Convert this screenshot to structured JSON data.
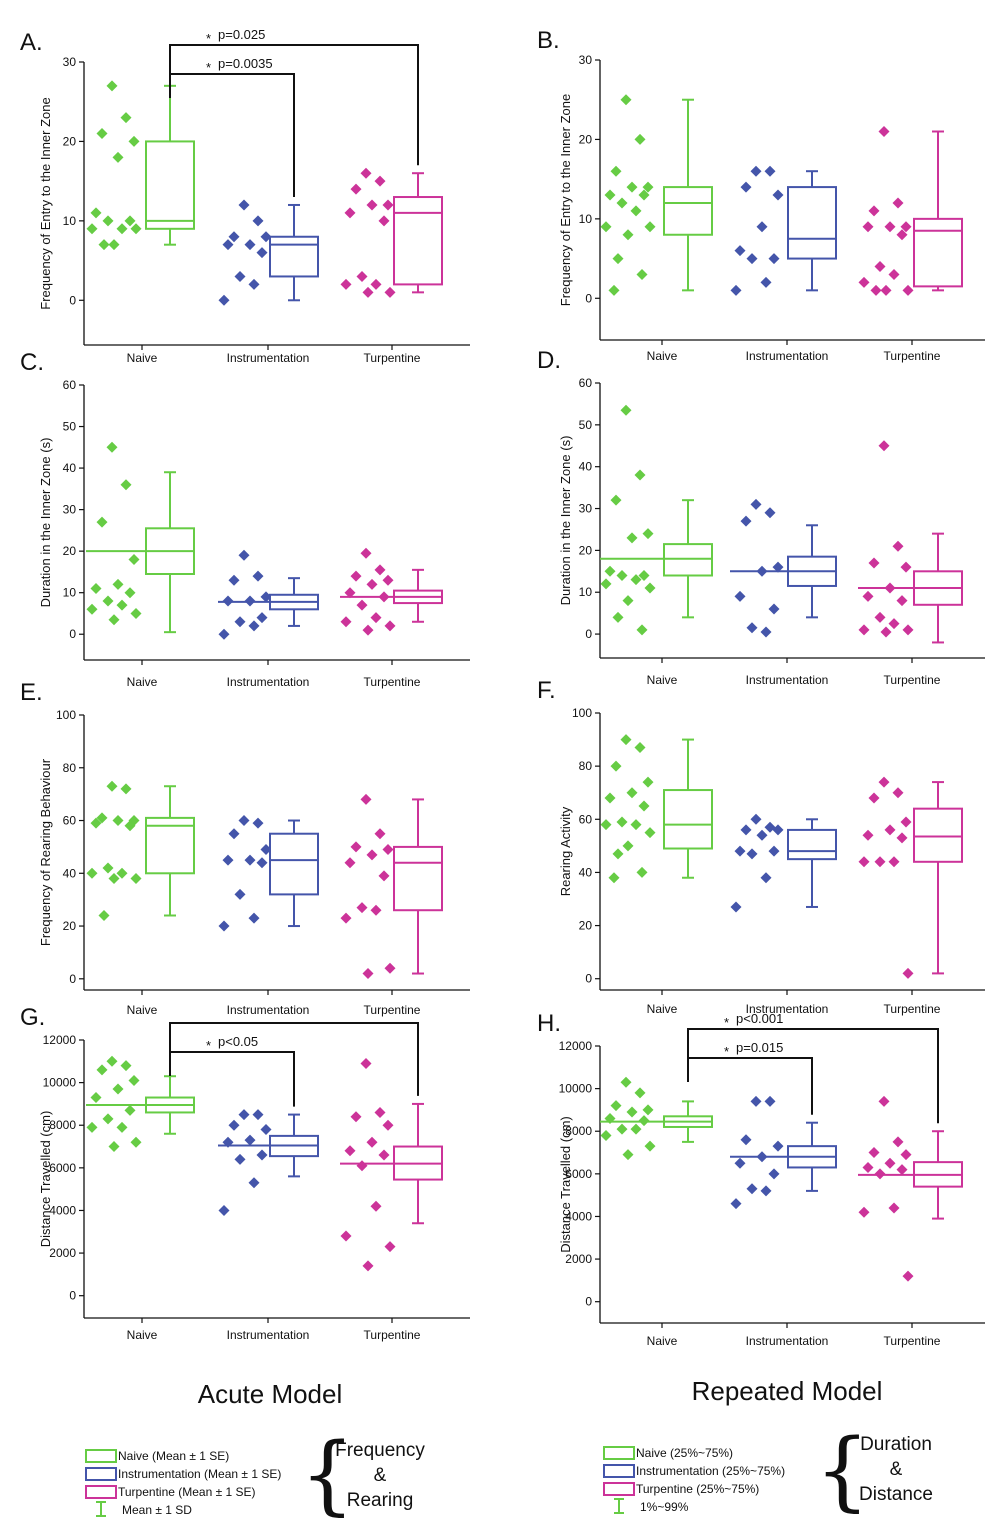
{
  "colors": {
    "naive": "#66cc44",
    "instrumentation": "#4455aa",
    "turpentine": "#cc3399",
    "axis": "#111111"
  },
  "model_titles": {
    "acute": "Acute Model",
    "repeated": "Repeated Model"
  },
  "legends": {
    "acute": {
      "items": [
        "Naive (Mean ± 1 SE)",
        "Instrumentation (Mean ± 1 SE)",
        "Turpentine (Mean ± 1 SE)",
        "Mean ± 1 SD"
      ],
      "brace_label": [
        "Frequency",
        "&",
        "Rearing"
      ]
    },
    "repeated": {
      "items": [
        "Naive (25%~75%)",
        "Instrumentation (25%~75%)",
        "Turpentine (25%~75%)",
        "1%~99%"
      ],
      "brace_label": [
        "Duration",
        "&",
        "Distance"
      ]
    }
  },
  "chart_data": [
    {
      "panel": "A.",
      "type": "box",
      "ylabel": "Frequency of Entry to the Inner Zone",
      "ylim": [
        -5,
        30
      ],
      "yticks": [
        0,
        10,
        20,
        30
      ],
      "categories": [
        "Naive",
        "Instrumentation",
        "Turpentine"
      ],
      "series": [
        {
          "group": "Naive",
          "points": [
            27,
            23,
            21,
            20,
            18,
            11,
            10,
            10,
            9,
            9,
            9,
            7,
            7
          ],
          "box": [
            9,
            10,
            20
          ],
          "whisker": [
            7,
            27
          ]
        },
        {
          "group": "Instrumentation",
          "points": [
            12,
            10,
            8,
            8,
            7,
            7,
            6,
            3,
            2,
            0
          ],
          "box": [
            3,
            7,
            8
          ],
          "whisker": [
            0,
            12
          ]
        },
        {
          "group": "Turpentine",
          "points": [
            16,
            15,
            14,
            12,
            12,
            11,
            10,
            3,
            2,
            2,
            1,
            1
          ],
          "box": [
            2,
            11,
            13
          ],
          "whisker": [
            1,
            16
          ]
        }
      ],
      "significance": [
        {
          "from": "Naive",
          "to": "Instrumentation",
          "label": "p=0.0035",
          "marker": "*"
        },
        {
          "from": "Naive",
          "to": "Turpentine",
          "label": "p=0.025",
          "marker": "*"
        }
      ]
    },
    {
      "panel": "B.",
      "type": "box",
      "ylabel": "Frequency of Entry to the Inner Zone",
      "ylim": [
        -5,
        30
      ],
      "yticks": [
        0,
        10,
        20,
        30
      ],
      "categories": [
        "Naive",
        "Instrumentation",
        "Turpentine"
      ],
      "series": [
        {
          "group": "Naive",
          "points": [
            25,
            20,
            16,
            14,
            14,
            13,
            13,
            12,
            11,
            9,
            9,
            8,
            5,
            3,
            1
          ],
          "box": [
            8,
            12,
            14
          ],
          "whisker": [
            1,
            25
          ]
        },
        {
          "group": "Instrumentation",
          "points": [
            16,
            16,
            14,
            13,
            9,
            6,
            5,
            5,
            2,
            1
          ],
          "box": [
            5,
            7.5,
            14
          ],
          "whisker": [
            1,
            16
          ]
        },
        {
          "group": "Turpentine",
          "points": [
            21,
            12,
            11,
            9,
            9,
            9,
            8,
            4,
            3,
            2,
            1,
            1,
            1
          ],
          "box": [
            1.5,
            8.5,
            10
          ],
          "whisker": [
            1,
            21
          ]
        }
      ],
      "significance": []
    },
    {
      "panel": "C.",
      "type": "box",
      "ylabel": "Duration in the Inner Zone (s)",
      "ylim": [
        -5,
        60
      ],
      "yticks": [
        0,
        10,
        20,
        30,
        40,
        50,
        60
      ],
      "categories": [
        "Naive",
        "Instrumentation",
        "Turpentine"
      ],
      "series": [
        {
          "group": "Naive",
          "points": [
            45,
            36,
            27,
            18,
            12,
            11,
            10,
            8,
            7,
            6,
            5,
            3.5
          ],
          "mean": 20,
          "box": [
            14.5,
            20,
            25.5
          ],
          "whisker": [
            0.5,
            39
          ]
        },
        {
          "group": "Instrumentation",
          "points": [
            19,
            14,
            13,
            9,
            8,
            8,
            4,
            3,
            2,
            0
          ],
          "mean": 7.8,
          "box": [
            6,
            7.8,
            9.5
          ],
          "whisker": [
            2,
            13.5
          ]
        },
        {
          "group": "Turpentine",
          "points": [
            19.5,
            15.5,
            14,
            13,
            12,
            10,
            9,
            7,
            4,
            3,
            2,
            1
          ],
          "mean": 9,
          "box": [
            7.5,
            9,
            10.5
          ],
          "whisker": [
            3,
            15.5
          ]
        }
      ],
      "significance": []
    },
    {
      "panel": "D.",
      "type": "box",
      "ylabel": "Duration in the Inner Zone (s)",
      "ylim": [
        -5,
        60
      ],
      "yticks": [
        0,
        10,
        20,
        30,
        40,
        50,
        60
      ],
      "categories": [
        "Naive",
        "Instrumentation",
        "Turpentine"
      ],
      "series": [
        {
          "group": "Naive",
          "points": [
            53.5,
            38,
            32,
            24,
            23,
            15,
            14,
            14,
            13,
            12,
            11,
            8,
            4,
            1
          ],
          "mean": 18,
          "box": [
            14,
            18,
            21.5
          ],
          "whisker": [
            4,
            32
          ]
        },
        {
          "group": "Instrumentation",
          "points": [
            31,
            29,
            27,
            16,
            15,
            9,
            6,
            1.5,
            0.5
          ],
          "mean": 15,
          "box": [
            11.5,
            15,
            18.5
          ],
          "whisker": [
            4,
            26
          ]
        },
        {
          "group": "Turpentine",
          "points": [
            45,
            21,
            17,
            16,
            11,
            9,
            8,
            4,
            2.5,
            1,
            1,
            0.5
          ],
          "mean": 11,
          "box": [
            7,
            11,
            15
          ],
          "whisker": [
            -2,
            24
          ]
        }
      ],
      "significance": []
    },
    {
      "panel": "E.",
      "type": "box",
      "ylabel": "Frequency of Rearing Behaviour",
      "ylim": [
        -5,
        100
      ],
      "yticks": [
        0,
        20,
        40,
        60,
        80,
        100
      ],
      "categories": [
        "Naive",
        "Instrumentation",
        "Turpentine"
      ],
      "series": [
        {
          "group": "Naive",
          "points": [
            73,
            72,
            61,
            60,
            60,
            59,
            58,
            42,
            40,
            40,
            38,
            38,
            24
          ],
          "box": [
            40,
            58,
            61
          ],
          "whisker": [
            24,
            73
          ]
        },
        {
          "group": "Instrumentation",
          "points": [
            60,
            59,
            55,
            49,
            45,
            45,
            44,
            32,
            23,
            20
          ],
          "box": [
            32,
            45,
            55
          ],
          "whisker": [
            20,
            60
          ]
        },
        {
          "group": "Turpentine",
          "points": [
            68,
            55,
            50,
            49,
            47,
            44,
            39,
            27,
            26,
            23,
            4,
            2
          ],
          "box": [
            26,
            44,
            50
          ],
          "whisker": [
            2,
            68
          ]
        }
      ],
      "significance": []
    },
    {
      "panel": "F.",
      "type": "box",
      "ylabel": "Rearing Activity",
      "ylim": [
        -5,
        100
      ],
      "yticks": [
        0,
        20,
        40,
        60,
        80,
        100
      ],
      "categories": [
        "Naive",
        "Instrumentation",
        "Turpentine"
      ],
      "series": [
        {
          "group": "Naive",
          "points": [
            90,
            87,
            80,
            74,
            70,
            68,
            65,
            59,
            58,
            58,
            55,
            50,
            47,
            40,
            38
          ],
          "box": [
            49,
            58,
            71
          ],
          "whisker": [
            38,
            90
          ]
        },
        {
          "group": "Instrumentation",
          "points": [
            60,
            57,
            56,
            56,
            54,
            48,
            48,
            47,
            38,
            27
          ],
          "box": [
            45,
            48,
            56
          ],
          "whisker": [
            27,
            60
          ]
        },
        {
          "group": "Turpentine",
          "points": [
            74,
            70,
            68,
            59,
            56,
            54,
            53,
            44,
            44,
            44,
            2
          ],
          "box": [
            44,
            53.5,
            64
          ],
          "whisker": [
            2,
            74
          ]
        }
      ],
      "significance": []
    },
    {
      "panel": "G.",
      "type": "box",
      "ylabel": "Distance Travelled (cm)",
      "ylim": [
        -1000,
        12000
      ],
      "yticks": [
        0,
        2000,
        4000,
        6000,
        8000,
        10000,
        12000
      ],
      "categories": [
        "Naive",
        "Instrumentation",
        "Turpentine"
      ],
      "series": [
        {
          "group": "Naive",
          "points": [
            11000,
            10800,
            10600,
            10100,
            9700,
            9300,
            8700,
            8300,
            7900,
            7900,
            7200,
            7000
          ],
          "mean": 8950,
          "box": [
            8600,
            8950,
            9300
          ],
          "whisker": [
            7600,
            10300
          ]
        },
        {
          "group": "Instrumentation",
          "points": [
            8500,
            8500,
            8000,
            7800,
            7300,
            7200,
            6600,
            6400,
            5300,
            4000
          ],
          "mean": 7050,
          "box": [
            6550,
            7050,
            7500
          ],
          "whisker": [
            5600,
            8500
          ]
        },
        {
          "group": "Turpentine",
          "points": [
            10900,
            8600,
            8400,
            8000,
            7200,
            6800,
            6600,
            6100,
            4200,
            2800,
            2300,
            1400
          ],
          "mean": 6200,
          "box": [
            5450,
            6200,
            7000
          ],
          "whisker": [
            3400,
            9000
          ]
        }
      ],
      "significance": [
        {
          "from": "Naive",
          "to": "Instrumentation",
          "label": "p<0.05",
          "marker": "*"
        },
        {
          "from": "Naive",
          "to": "Turpentine",
          "label": "",
          "marker": ""
        }
      ]
    },
    {
      "panel": "H.",
      "type": "box",
      "ylabel": "Distance Travelled (cm)",
      "ylim": [
        -1000,
        12000
      ],
      "yticks": [
        0,
        2000,
        4000,
        6000,
        8000,
        10000,
        12000
      ],
      "categories": [
        "Naive",
        "Instrumentation",
        "Turpentine"
      ],
      "series": [
        {
          "group": "Naive",
          "points": [
            10300,
            9800,
            9200,
            9000,
            8900,
            8600,
            8500,
            8100,
            8100,
            7800,
            7300,
            6900
          ],
          "mean": 8450,
          "box": [
            8200,
            8450,
            8700
          ],
          "whisker": [
            7500,
            9400
          ]
        },
        {
          "group": "Instrumentation",
          "points": [
            9400,
            9400,
            7600,
            7300,
            6800,
            6500,
            6000,
            5300,
            5200,
            4600
          ],
          "mean": 6800,
          "box": [
            6300,
            6800,
            7300
          ],
          "whisker": [
            5200,
            8400
          ]
        },
        {
          "group": "Turpentine",
          "points": [
            9400,
            7500,
            7000,
            6900,
            6500,
            6300,
            6200,
            6000,
            4400,
            4200,
            1200
          ],
          "mean": 5950,
          "box": [
            5400,
            5950,
            6550
          ],
          "whisker": [
            3900,
            8000
          ]
        }
      ],
      "significance": [
        {
          "from": "Naive",
          "to": "Instrumentation",
          "label": "p=0.015",
          "marker": "*"
        },
        {
          "from": "Naive",
          "to": "Turpentine",
          "label": "p<0.001",
          "marker": "*"
        }
      ]
    }
  ]
}
